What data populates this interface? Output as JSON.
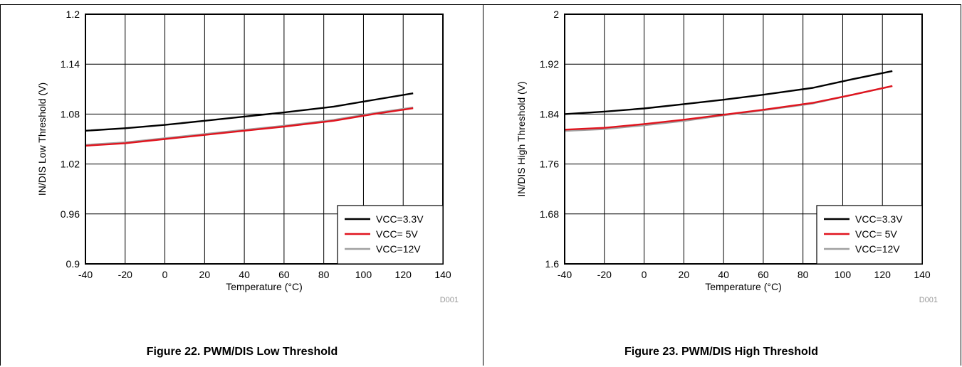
{
  "chart_data": [
    {
      "type": "line",
      "caption": "Figure 22. PWM/DIS Low Threshold",
      "xlabel": "Temperature (°C)",
      "ylabel": "IN/DIS Low Threshold (V)",
      "xlim": [
        -40,
        140
      ],
      "ylim": [
        0.9,
        1.2
      ],
      "xticks": [
        "-40",
        "-20",
        "0",
        "20",
        "40",
        "60",
        "80",
        "100",
        "120",
        "140"
      ],
      "yticks": [
        "0.9",
        "0.96",
        "1.02",
        "1.08",
        "1.14",
        "1.2"
      ],
      "grid": true,
      "legend_position": "bottom-right",
      "note": "D001",
      "series": [
        {
          "name": "VCC=3.3V",
          "color": "#000000",
          "x": [
            -40,
            -20,
            0,
            20,
            40,
            60,
            85,
            105,
            125
          ],
          "y": [
            1.06,
            1.063,
            1.067,
            1.072,
            1.077,
            1.082,
            1.089,
            1.097,
            1.105
          ]
        },
        {
          "name": "VCC= 5V",
          "color": "#e0141e",
          "x": [
            -40,
            -20,
            0,
            20,
            40,
            60,
            85,
            105,
            125
          ],
          "y": [
            1.042,
            1.045,
            1.05,
            1.055,
            1.06,
            1.065,
            1.072,
            1.08,
            1.087
          ]
        },
        {
          "name": "VCC=12V",
          "color": "#a0a0a0",
          "x": [
            -40,
            -20,
            0,
            20,
            40,
            60,
            85,
            105,
            125
          ],
          "y": [
            1.043,
            1.046,
            1.051,
            1.056,
            1.061,
            1.066,
            1.073,
            1.081,
            1.088
          ]
        }
      ]
    },
    {
      "type": "line",
      "caption": "Figure 23. PWM/DIS High Threshold",
      "xlabel": "Temperature (°C)",
      "ylabel": "IN/DIS High Threshold (V)",
      "xlim": [
        -40,
        140
      ],
      "ylim": [
        1.6,
        2.0
      ],
      "xticks": [
        "-40",
        "-20",
        "0",
        "20",
        "40",
        "60",
        "80",
        "100",
        "120",
        "140"
      ],
      "yticks": [
        "1.6",
        "1.68",
        "1.76",
        "1.84",
        "1.92",
        "2"
      ],
      "grid": true,
      "legend_position": "bottom-right",
      "note": "D001",
      "series": [
        {
          "name": "VCC=3.3V",
          "color": "#000000",
          "x": [
            -40,
            -20,
            0,
            20,
            40,
            60,
            85,
            105,
            125
          ],
          "y": [
            1.84,
            1.844,
            1.849,
            1.856,
            1.863,
            1.871,
            1.882,
            1.896,
            1.909
          ]
        },
        {
          "name": "VCC= 5V",
          "color": "#e0141e",
          "x": [
            -40,
            -20,
            0,
            20,
            40,
            60,
            85,
            105,
            125
          ],
          "y": [
            1.815,
            1.818,
            1.824,
            1.831,
            1.839,
            1.847,
            1.858,
            1.871,
            1.885
          ]
        },
        {
          "name": "VCC=12V",
          "color": "#a0a0a0",
          "x": [
            -40,
            -20,
            0,
            20,
            40,
            60,
            85,
            105,
            125
          ],
          "y": [
            1.813,
            1.816,
            1.822,
            1.829,
            1.838,
            1.846,
            1.857,
            1.871,
            1.885
          ]
        }
      ]
    }
  ]
}
